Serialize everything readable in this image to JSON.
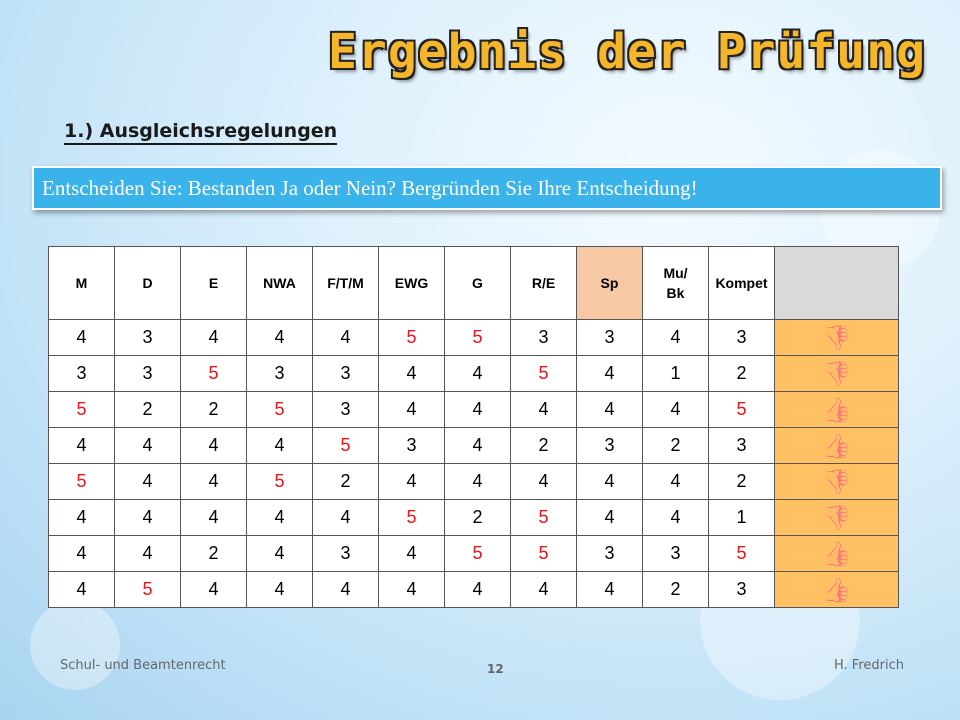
{
  "slide": {
    "title": "Ergebnis der Prüfung",
    "subheading": "1.) Ausgleichsregelungen",
    "banner": "Entscheiden Sie: Bestanden Ja oder Nein? Bergründen Sie Ihre Entscheidung!"
  },
  "table": {
    "headers": [
      "M",
      "D",
      "E",
      "NWA",
      "F/T/M",
      "EWG",
      "G",
      "R/E",
      "Sp",
      "Mu/\nBk",
      "Kompet",
      ""
    ],
    "rows": [
      {
        "grades": [
          "4",
          "3",
          "4",
          "4",
          "4",
          "5",
          "5",
          "3",
          "3",
          "4",
          "3"
        ],
        "result": "thumbs-down"
      },
      {
        "grades": [
          "3",
          "3",
          "5",
          "3",
          "3",
          "4",
          "4",
          "5",
          "4",
          "1",
          "2"
        ],
        "result": "thumbs-down"
      },
      {
        "grades": [
          "5",
          "2",
          "2",
          "5",
          "3",
          "4",
          "4",
          "4",
          "4",
          "4",
          "5"
        ],
        "result": "thumbs-up"
      },
      {
        "grades": [
          "4",
          "4",
          "4",
          "4",
          "5",
          "3",
          "4",
          "2",
          "3",
          "2",
          "3"
        ],
        "result": "thumbs-up"
      },
      {
        "grades": [
          "5",
          "4",
          "4",
          "5",
          "2",
          "4",
          "4",
          "4",
          "4",
          "4",
          "2"
        ],
        "result": "thumbs-down"
      },
      {
        "grades": [
          "4",
          "4",
          "4",
          "4",
          "4",
          "5",
          "2",
          "5",
          "4",
          "4",
          "1"
        ],
        "result": "thumbs-down"
      },
      {
        "grades": [
          "4",
          "4",
          "2",
          "4",
          "3",
          "4",
          "5",
          "5",
          "3",
          "3",
          "5"
        ],
        "result": "thumbs-up"
      },
      {
        "grades": [
          "4",
          "5",
          "4",
          "4",
          "4",
          "4",
          "4",
          "4",
          "4",
          "2",
          "3"
        ],
        "result": "thumbs-up"
      }
    ]
  },
  "footer": {
    "left": "Schul- und Beamtenrecht",
    "page": "12",
    "right": "H. Fredrich"
  },
  "colors": {
    "fail_grade": "#e8151b",
    "banner": "#39b3ea",
    "title": "#f5b62a",
    "sport_header": "#f7c8a4",
    "result_column": "#d9d9d9"
  }
}
